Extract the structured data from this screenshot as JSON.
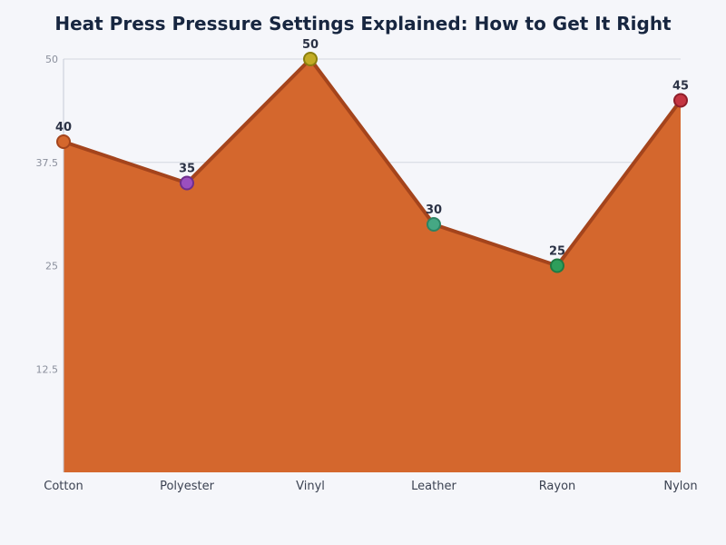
{
  "chart_data": {
    "type": "area",
    "title": "Heat Press Pressure Settings Explained: How to Get It Right",
    "categories": [
      "Cotton",
      "Polyester",
      "Vinyl",
      "Leather",
      "Rayon",
      "Nylon"
    ],
    "values": [
      40,
      35,
      50,
      30,
      25,
      45
    ],
    "data_labels": [
      "40",
      "35",
      "50",
      "30",
      "25",
      "45"
    ],
    "ylim": [
      0,
      50
    ],
    "y_ticks": [
      12.5,
      25,
      37.5,
      50
    ],
    "y_tick_labels": [
      "12.5",
      "25",
      "37.5",
      "50"
    ],
    "xlabel": "",
    "ylabel": "",
    "grid": "horizontal",
    "legend": "none",
    "colors": {
      "area_fill": "#d4672d",
      "line": "#a4441c",
      "gridline": "#d3d7e0",
      "axis": "#c5cad6",
      "marker_outlines": [
        "#a4441c",
        "#6f2e8c",
        "#8a7f0e",
        "#2c8363",
        "#1f7a43",
        "#8e1e2a"
      ],
      "marker_fills": [
        "#d4672d",
        "#9b4fbf",
        "#c2ac25",
        "#45a884",
        "#2e9e5b",
        "#c43542"
      ]
    }
  }
}
